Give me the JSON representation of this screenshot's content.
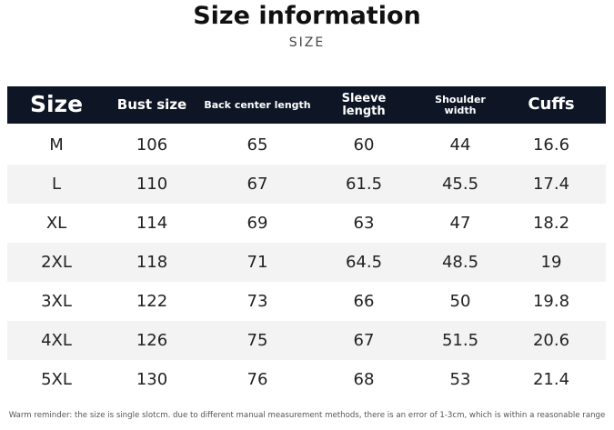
{
  "header": {
    "title": "Size information",
    "subtitle": "SIZE"
  },
  "table": {
    "columns": [
      "Size",
      "Bust size",
      "Back center length",
      "Sleeve length",
      "Shoulder width",
      "Cuffs"
    ],
    "rows": [
      [
        "M",
        106,
        65,
        60,
        44,
        16.6
      ],
      [
        "L",
        110,
        67,
        61.5,
        45.5,
        17.4
      ],
      [
        "XL",
        114,
        69,
        63,
        47,
        18.2
      ],
      [
        "2XL",
        118,
        71,
        64.5,
        48.5,
        19
      ],
      [
        "3XL",
        122,
        73,
        66,
        50,
        19.8
      ],
      [
        "4XL",
        126,
        75,
        67,
        51.5,
        20.6
      ],
      [
        "5XL",
        130,
        76,
        68,
        53,
        21.4
      ]
    ]
  },
  "footer": {
    "note": "Warm reminder: the size is single slotcm. due to different manual measurement methods, there is an error of 1-3cm, which is within a reasonable range"
  }
}
